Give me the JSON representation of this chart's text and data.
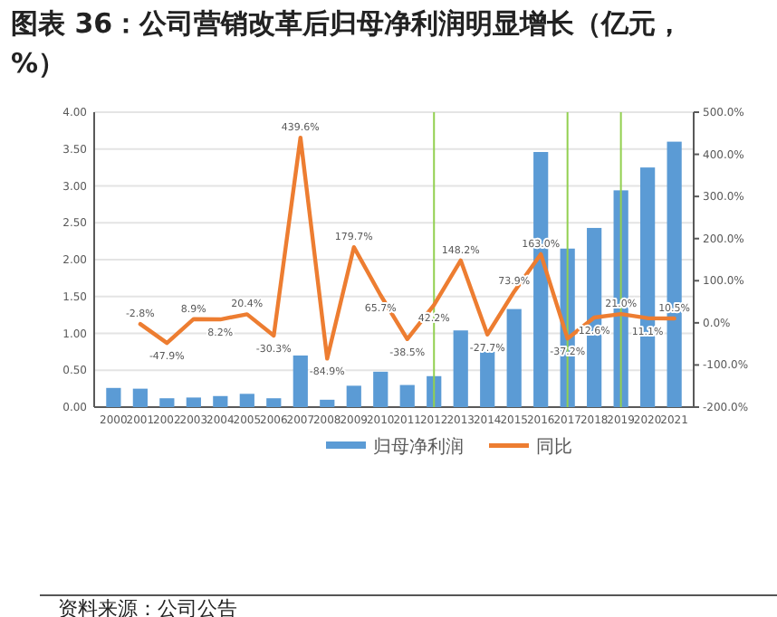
{
  "chart_data": {
    "type": "bar",
    "title": "图表 36：公司营销改革后归母净利润明显增长（亿元，%）",
    "categories": [
      "2000",
      "2001",
      "2002",
      "2003",
      "2004",
      "2005",
      "2006",
      "2007",
      "2008",
      "2009",
      "2010",
      "2011",
      "2012",
      "2013",
      "2014",
      "2015",
      "2016",
      "2017",
      "2018",
      "2019",
      "2020",
      "2021"
    ],
    "series": [
      {
        "name": "归母净利润",
        "color": "#5b9bd5",
        "values": [
          0.26,
          0.25,
          0.12,
          0.13,
          0.15,
          0.18,
          0.12,
          0.7,
          0.1,
          0.29,
          0.48,
          0.3,
          0.42,
          1.04,
          0.75,
          1.33,
          3.46,
          2.15,
          2.43,
          2.94,
          3.25,
          3.6
        ]
      },
      {
        "name": "同比",
        "type": "line",
        "axis": "y2",
        "color": "#ed7d31",
        "values": [
          null,
          -2.8,
          -47.9,
          8.9,
          8.2,
          20.4,
          -30.3,
          439.6,
          -84.9,
          179.7,
          65.7,
          -38.5,
          42.2,
          148.2,
          -27.7,
          73.9,
          163.0,
          -37.2,
          12.6,
          21.0,
          11.1,
          10.5
        ],
        "value_labels": [
          null,
          "-2.8%",
          "-47.9%",
          "8.9%",
          "8.2%",
          "20.4%",
          "-30.3%",
          "439.6%",
          "-84.9%",
          "179.7%",
          "65.7%",
          "-38.5%",
          "42.2%",
          "148.2%",
          "-27.7%",
          "73.9%",
          "163.0%",
          "-37.2%",
          "12.6%",
          "21.0%",
          "11.1%",
          "10.5%"
        ]
      }
    ],
    "ylim": [
      0,
      4
    ],
    "yticks": [
      {
        "value": 0,
        "label": "0.00"
      },
      {
        "value": 0.5,
        "label": "0.50"
      },
      {
        "value": 1,
        "label": "1.00"
      },
      {
        "value": 1.5,
        "label": "1.50"
      },
      {
        "value": 2,
        "label": "2.00"
      },
      {
        "value": 2.5,
        "label": "2.50"
      },
      {
        "value": 3,
        "label": "3.00"
      },
      {
        "value": 3.5,
        "label": "3.50"
      },
      {
        "value": 4,
        "label": "4.00"
      }
    ],
    "y2lim": [
      -200,
      500
    ],
    "y2ticks": [
      {
        "value": -200,
        "label": "-200.0%"
      },
      {
        "value": -100,
        "label": "-100.0%"
      },
      {
        "value": 0,
        "label": "0.0%"
      },
      {
        "value": 100,
        "label": "100.0%"
      },
      {
        "value": 200,
        "label": "200.0%"
      },
      {
        "value": 300,
        "label": "300.0%"
      },
      {
        "value": 400,
        "label": "400.0%"
      },
      {
        "value": 500,
        "label": "500.0%"
      }
    ],
    "grid": "y",
    "legend": "bottom",
    "ref_lines": [
      {
        "axis": "x",
        "value": "2012",
        "color": "#92d050"
      },
      {
        "axis": "x",
        "value": "2017",
        "color": "#92d050"
      },
      {
        "axis": "x",
        "value": "2019",
        "color": "#92d050"
      }
    ],
    "annotations": [
      "资料来源：公司公告"
    ]
  }
}
